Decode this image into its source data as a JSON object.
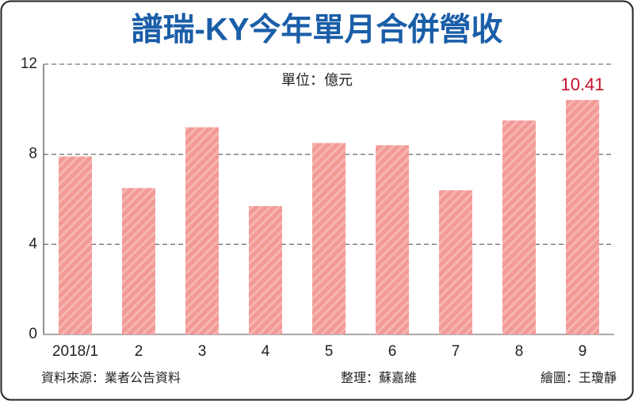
{
  "chart_data": {
    "type": "bar",
    "title": "譜瑞-KY今年單月合併營收",
    "subtitle": "單位：億元",
    "categories": [
      "2018/1",
      "2",
      "3",
      "4",
      "5",
      "6",
      "7",
      "8",
      "9"
    ],
    "values": [
      7.9,
      6.5,
      9.2,
      5.7,
      8.5,
      8.4,
      6.4,
      9.5,
      10.41
    ],
    "value_labels": [
      null,
      null,
      null,
      null,
      null,
      null,
      null,
      null,
      "10.41"
    ],
    "color": "#f29a96",
    "ylim": [
      0,
      12
    ],
    "yticks": [
      0,
      4,
      8,
      12
    ],
    "grid": true,
    "source": "資料來源：業者公告資料",
    "editor": "整理：蘇嘉維",
    "artist": "繪圖：王瓊靜"
  }
}
